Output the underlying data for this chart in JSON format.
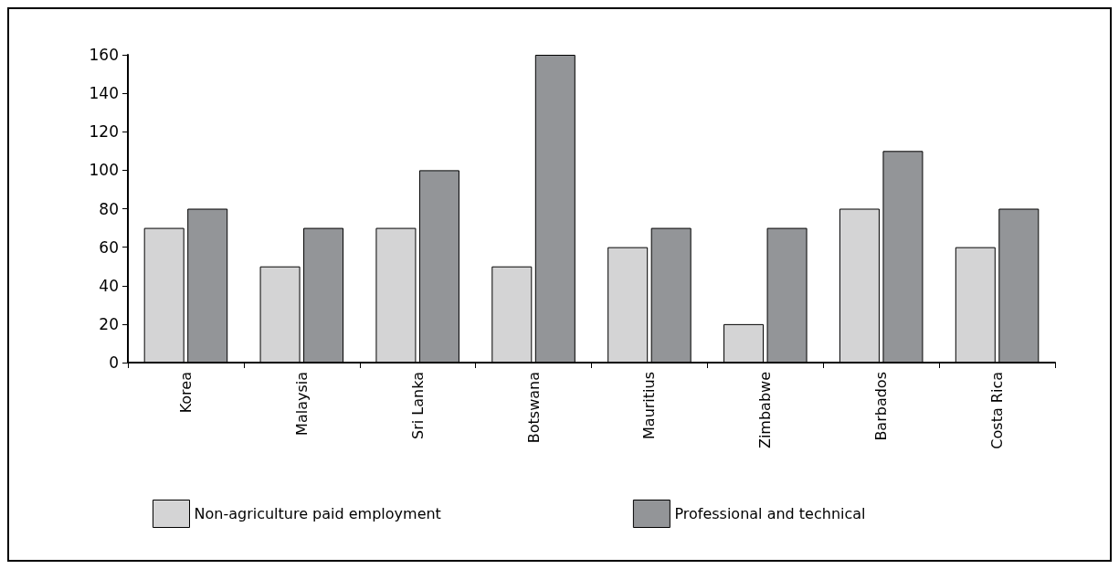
{
  "chart_data": {
    "type": "bar",
    "categories": [
      "Korea",
      "Malaysia",
      "Sri Lanka",
      "Botswana",
      "Mauritius",
      "Zimbabwe",
      "Barbados",
      "Costa Rica"
    ],
    "series": [
      {
        "name": "Non-agriculture paid employment",
        "color": "#d4d4d5",
        "values": [
          70,
          50,
          70,
          50,
          60,
          20,
          80,
          60
        ]
      },
      {
        "name": "Professional and technical",
        "color": "#939598",
        "values": [
          80,
          70,
          100,
          160,
          70,
          70,
          110,
          80
        ]
      }
    ],
    "ylim": [
      0,
      160
    ],
    "yticks": [
      0,
      20,
      40,
      60,
      80,
      100,
      120,
      140,
      160
    ],
    "grid": false,
    "legend": "bottom left"
  }
}
